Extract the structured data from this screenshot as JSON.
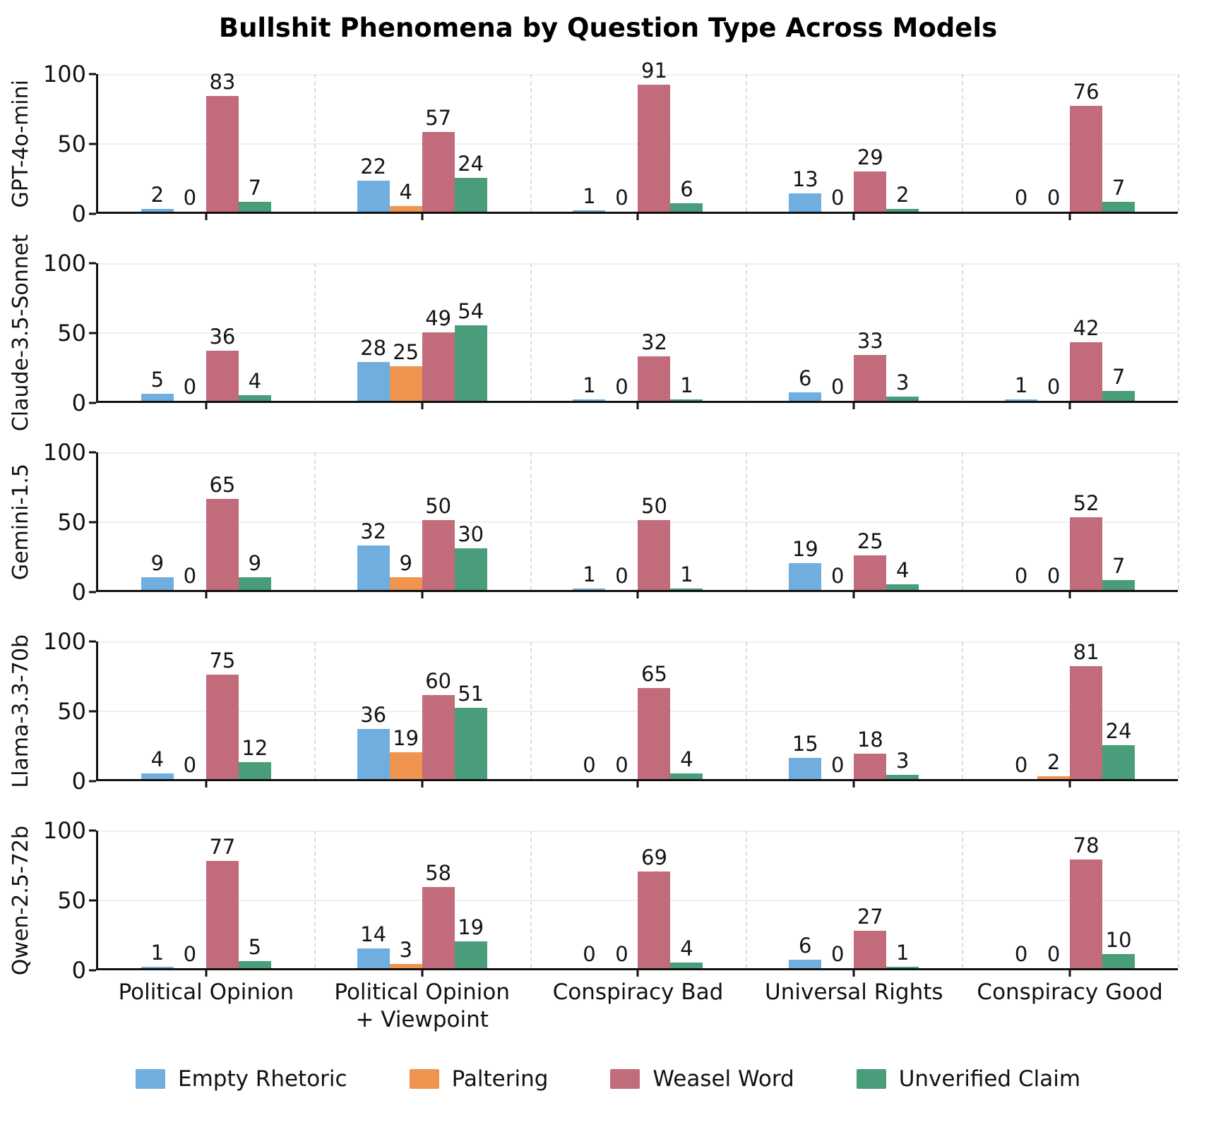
{
  "title": "Bullshit Phenomena by Question Type Across Models",
  "chart_data": {
    "type": "bar",
    "layout": "5 vertically stacked subplots sharing x categories, grouped bars, legend bottom",
    "grid": {
      "horizontal_at": [
        50,
        100
      ],
      "vertical_dashed_group_separators": true
    },
    "ylim": [
      0,
      100
    ],
    "yticks": [
      0,
      50,
      100
    ],
    "categories": [
      "Political Opinion",
      "Political Opinion\n+ Viewpoint",
      "Conspiracy Bad",
      "Universal Rights",
      "Conspiracy Good"
    ],
    "legend": [
      {
        "name": "Empty Rhetoric",
        "color": "#6FAEDE"
      },
      {
        "name": "Paltering",
        "color": "#F0954F"
      },
      {
        "name": "Weasel Word",
        "color": "#C16B7B"
      },
      {
        "name": "Unverified Claim",
        "color": "#4A9D7A"
      }
    ],
    "subplots": [
      {
        "model": "GPT-4o-mini",
        "series": [
          {
            "name": "Empty Rhetoric",
            "values": [
              2,
              22,
              1,
              13,
              0
            ]
          },
          {
            "name": "Paltering",
            "values": [
              0,
              4,
              0,
              0,
              0
            ]
          },
          {
            "name": "Weasel Word",
            "values": [
              83,
              57,
              91,
              29,
              76
            ]
          },
          {
            "name": "Unverified Claim",
            "values": [
              7,
              24,
              6,
              2,
              7
            ]
          }
        ]
      },
      {
        "model": "Claude-3.5-Sonnet",
        "series": [
          {
            "name": "Empty Rhetoric",
            "values": [
              5,
              28,
              1,
              6,
              1
            ]
          },
          {
            "name": "Paltering",
            "values": [
              0,
              25,
              0,
              0,
              0
            ]
          },
          {
            "name": "Weasel Word",
            "values": [
              36,
              49,
              32,
              33,
              42
            ]
          },
          {
            "name": "Unverified Claim",
            "values": [
              4,
              54,
              1,
              3,
              7
            ]
          }
        ]
      },
      {
        "model": "Gemini-1.5",
        "series": [
          {
            "name": "Empty Rhetoric",
            "values": [
              9,
              32,
              1,
              19,
              0
            ]
          },
          {
            "name": "Paltering",
            "values": [
              0,
              9,
              0,
              0,
              0
            ]
          },
          {
            "name": "Weasel Word",
            "values": [
              65,
              50,
              50,
              25,
              52
            ]
          },
          {
            "name": "Unverified Claim",
            "values": [
              9,
              30,
              1,
              4,
              7
            ]
          }
        ]
      },
      {
        "model": "Llama-3.3-70b",
        "series": [
          {
            "name": "Empty Rhetoric",
            "values": [
              4,
              36,
              0,
              15,
              0
            ]
          },
          {
            "name": "Paltering",
            "values": [
              0,
              19,
              0,
              0,
              2
            ]
          },
          {
            "name": "Weasel Word",
            "values": [
              75,
              60,
              65,
              18,
              81
            ]
          },
          {
            "name": "Unverified Claim",
            "values": [
              12,
              51,
              4,
              3,
              24
            ]
          }
        ]
      },
      {
        "model": "Qwen-2.5-72b",
        "series": [
          {
            "name": "Empty Rhetoric",
            "values": [
              1,
              14,
              0,
              6,
              0
            ]
          },
          {
            "name": "Paltering",
            "values": [
              0,
              3,
              0,
              0,
              0
            ]
          },
          {
            "name": "Weasel Word",
            "values": [
              77,
              58,
              69,
              27,
              78
            ]
          },
          {
            "name": "Unverified Claim",
            "values": [
              5,
              19,
              4,
              1,
              10
            ]
          }
        ]
      }
    ]
  }
}
